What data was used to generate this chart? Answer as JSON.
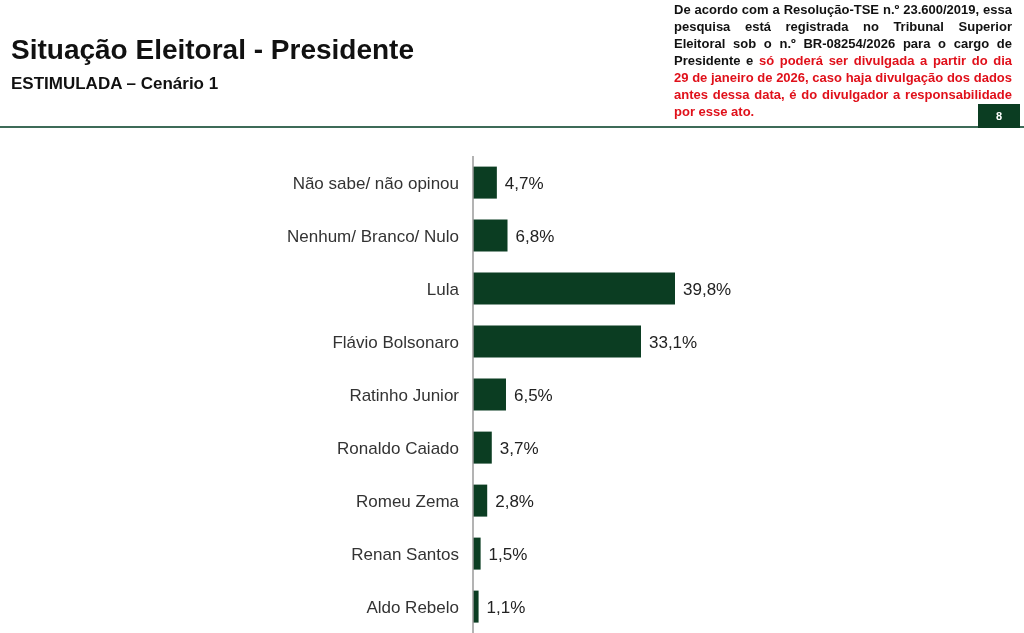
{
  "chart_data": {
    "type": "bar",
    "orientation": "horizontal",
    "title": "Situação Eleitoral - Presidente",
    "subtitle": "ESTIMULADA – Cenário 1",
    "annotations": [
      "De acordo com a Resolução-TSE n.º 23.600/2019, essa pesquisa está registrada no Tribunal Superior Eleitoral sob o n.º BR-08254/2026 para o cargo de Presidente e",
      "só poderá ser divulgada a partir do dia 29 de janeiro de 2026, caso haja divulgação dos dados antes dessa data, é do divulgador a responsabilidade por esse ato.",
      "8"
    ],
    "categories": [
      "Não sabe/ não opinou",
      "Nenhum/ Branco/ Nulo",
      "Lula",
      "Flávio Bolsonaro",
      "Ratinho Junior",
      "Ronaldo Caiado",
      "Romeu Zema",
      "Renan Santos",
      "Aldo Rebelo"
    ],
    "values": [
      4.7,
      6.8,
      39.8,
      33.1,
      6.5,
      3.7,
      2.8,
      1.5,
      1.1
    ],
    "value_labels": [
      "4,7%",
      "6,8%",
      "39,8%",
      "33,1%",
      "6,5%",
      "3,7%",
      "2,8%",
      "1,5%",
      "1,1%"
    ],
    "color": "#0b3d22",
    "tick_labels": "y",
    "grid": false,
    "legend": false
  }
}
